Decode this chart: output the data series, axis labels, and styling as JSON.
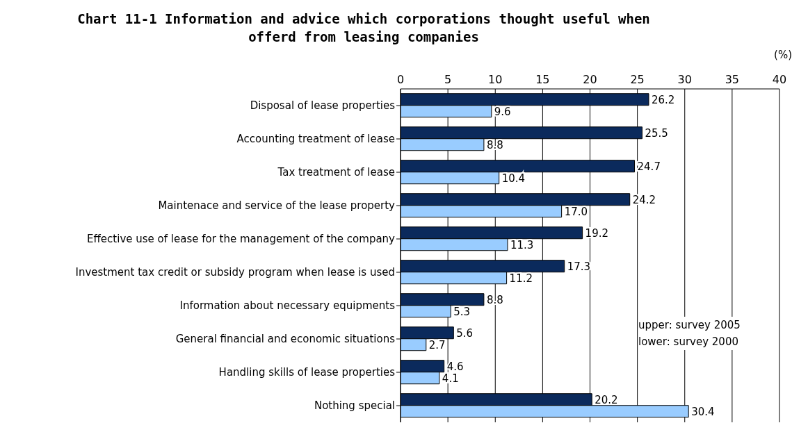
{
  "chart_data": {
    "type": "bar",
    "orientation": "horizontal",
    "title": "Chart 11-1 Information and advice which corporations thought useful when offerd from leasing companies",
    "xlabel": "(%)",
    "categories": [
      "Disposal of lease properties",
      "Accounting treatment of lease",
      "Tax treatment of lease",
      "Maintenace and service of the lease property",
      "Effective use of lease for the management of the company",
      "Investment tax credit or subsidy program when lease is used",
      "Information about necessary equipments",
      "General financial and economic situations",
      "Handling skills of lease properties",
      "Nothing special"
    ],
    "series": [
      {
        "color": "#0b2a5c",
        "values": [
          26.2,
          25.5,
          24.7,
          24.2,
          19.2,
          17.3,
          8.8,
          5.6,
          4.6,
          20.2
        ],
        "value_labels": [
          "26.2",
          "25.5",
          "24.7",
          "24.2",
          "19.2",
          "17.3",
          "8.8",
          "5.6",
          "4.6",
          "20.2"
        ]
      },
      {
        "color": "#99ccff",
        "values": [
          9.6,
          8.8,
          10.4,
          17.0,
          11.3,
          11.2,
          5.3,
          2.7,
          4.1,
          30.4
        ],
        "value_labels": [
          "9.6",
          "8.8",
          "10.4",
          "17.0",
          "11.3",
          "11.2",
          "5.3",
          "2.7",
          "4.1",
          "30.4"
        ]
      }
    ],
    "xlim": [
      0,
      40
    ],
    "xticks": [
      0,
      5,
      10,
      15,
      20,
      25,
      30,
      35,
      40
    ],
    "grid": "x",
    "annotations": [
      "upper: survey 2005",
      "lower: survey 2000"
    ]
  }
}
